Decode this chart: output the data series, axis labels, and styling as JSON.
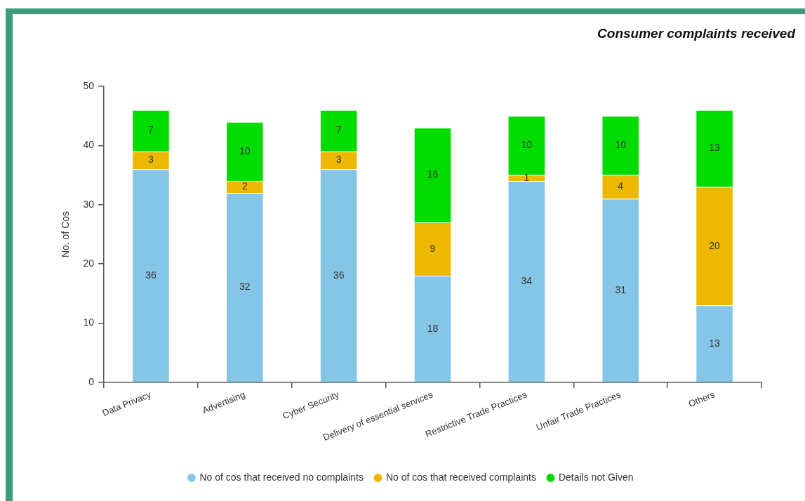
{
  "chart_data": {
    "type": "bar",
    "title": "Consumer complaints received",
    "ylabel": "No. of Cos",
    "categories": [
      "Data Privacy",
      "Advertising",
      "Cyber Security",
      "Delivery of essential services",
      "Restrictive Trade Practices",
      "Unfair Trade Practices",
      "Others"
    ],
    "series": [
      {
        "name": "No of cos that received no complaints",
        "color": "#85c5e6",
        "values": [
          36,
          32,
          36,
          18,
          34,
          31,
          13
        ]
      },
      {
        "name": "No of cos that received complaints",
        "color": "#ecb900",
        "values": [
          3,
          2,
          3,
          9,
          1,
          4,
          20
        ]
      },
      {
        "name": "Details not Given",
        "color": "#00dc00",
        "values": [
          7,
          10,
          7,
          16,
          10,
          10,
          13
        ]
      }
    ],
    "stacked": true,
    "data_labels": true,
    "ylim": [
      0,
      50
    ],
    "yticks": [
      0,
      10,
      20,
      30,
      40,
      50
    ],
    "legend": "bottom"
  }
}
